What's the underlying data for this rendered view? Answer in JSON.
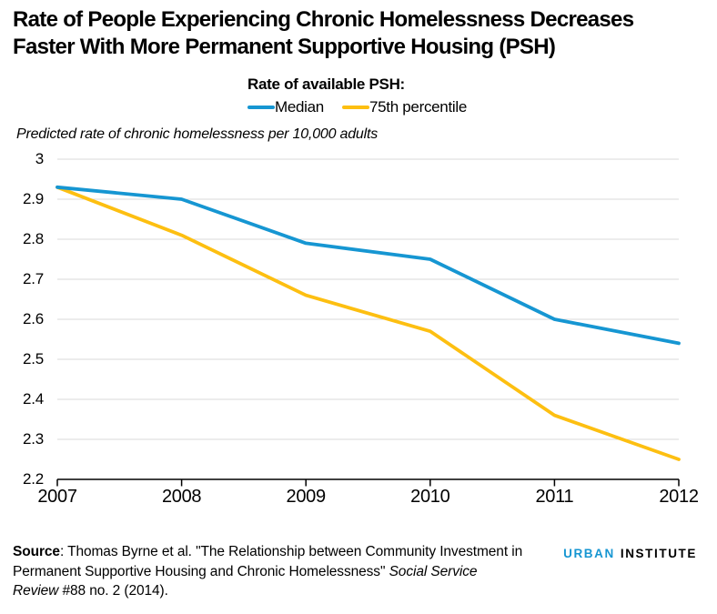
{
  "header": {
    "line1": "Rate of People Experiencing Chronic Homelessness Decreases",
    "line2": "Faster With More Permanent Supportive Housing (PSH)"
  },
  "chart_data": {
    "type": "line",
    "title": "Rate of People Experiencing Chronic Homelessness Decreases Faster With More Permanent Supportive Housing (PSH)",
    "legend_title": "Rate of available PSH:",
    "legend_position": "top-center",
    "ylabel": "Predicted rate of chronic homelessness per 10,000 adults",
    "xlabel": "",
    "x": [
      2007,
      2008,
      2009,
      2010,
      2011,
      2012
    ],
    "xtick_labels": [
      "2007",
      "2008",
      "2009",
      "2010",
      "2011",
      "2012"
    ],
    "series": [
      {
        "name": "Median",
        "color": "#1696d2",
        "values": [
          2.93,
          2.9,
          2.79,
          2.75,
          2.6,
          2.54
        ]
      },
      {
        "name": "75th percentile",
        "color": "#fdbf11",
        "values": [
          2.93,
          2.81,
          2.66,
          2.57,
          2.36,
          2.25
        ]
      }
    ],
    "ylim": [
      2.2,
      3.0
    ],
    "ytick_labels": [
      "3",
      "2.9",
      "2.8",
      "2.7",
      "2.6",
      "2.5",
      "2.4",
      "2.3",
      "2.2"
    ],
    "grid": "horizontal",
    "gridline_color": "#d9d9d9",
    "axis_color": "#000000"
  },
  "footer": {
    "lines": [
      [
        {
          "t": "Source",
          "b": 1
        },
        {
          "t": ": Thomas Byrne et al. \"The Relationship between Community Investment in"
        }
      ],
      [
        {
          "t": "Permanent Supportive Housing and Chronic Homelessness\" "
        },
        {
          "t": "Social Service",
          "i": 1
        }
      ],
      [
        {
          "t": "Review",
          "i": 1
        },
        {
          "t": " #88 no. 2 (2014)."
        }
      ]
    ],
    "logo": {
      "urban": "URBAN",
      "institute": "INSTITUTE",
      "urban_color": "#1696d2",
      "institute_color": "#000000"
    }
  }
}
